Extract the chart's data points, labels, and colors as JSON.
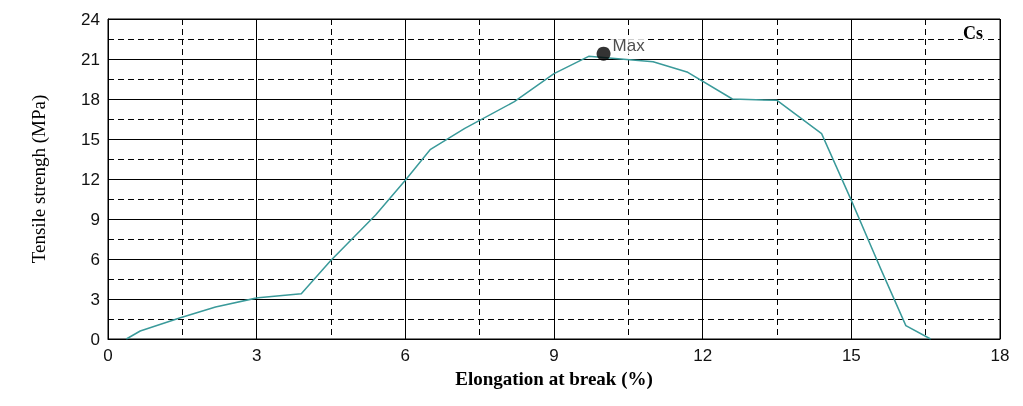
{
  "chart_data": {
    "type": "line",
    "xlabel": "Elongation at break (%)",
    "ylabel": "Tensile strengh (MPa)",
    "xlim": [
      0,
      18
    ],
    "xticks": [
      0,
      3,
      6,
      9,
      12,
      15,
      18
    ],
    "ylim": [
      0,
      24
    ],
    "yticks": [
      0,
      3,
      6,
      9,
      12,
      15,
      18,
      21,
      24
    ],
    "grid": true,
    "line_style": "solid",
    "annotations": [
      {
        "text": "Max",
        "x": 10,
        "y": 21.4
      },
      "Cs"
    ],
    "series": [
      {
        "marker": "none",
        "color": "#3a9a9a",
        "x": [
          0.37,
          0.65,
          1.46,
          2.17,
          3.03,
          3.9,
          4.5,
          5.4,
          6.0,
          6.5,
          7.2,
          8.2,
          9.0,
          9.7,
          11.0,
          11.7,
          12.6,
          13.5,
          14.4,
          15.0,
          15.6,
          16.1,
          16.6
        ],
        "values": [
          0,
          0.6,
          1.6,
          2.4,
          3.1,
          3.4,
          5.9,
          9.3,
          11.9,
          14.2,
          15.8,
          17.8,
          19.9,
          21.2,
          20.8,
          20.0,
          18.0,
          17.9,
          15.4,
          10.4,
          5.2,
          1.0,
          0
        ]
      },
      {
        "type": "scatter",
        "marker": "circle",
        "color": "#000000",
        "x": [
          10
        ],
        "values": [
          21.4
        ]
      }
    ]
  }
}
